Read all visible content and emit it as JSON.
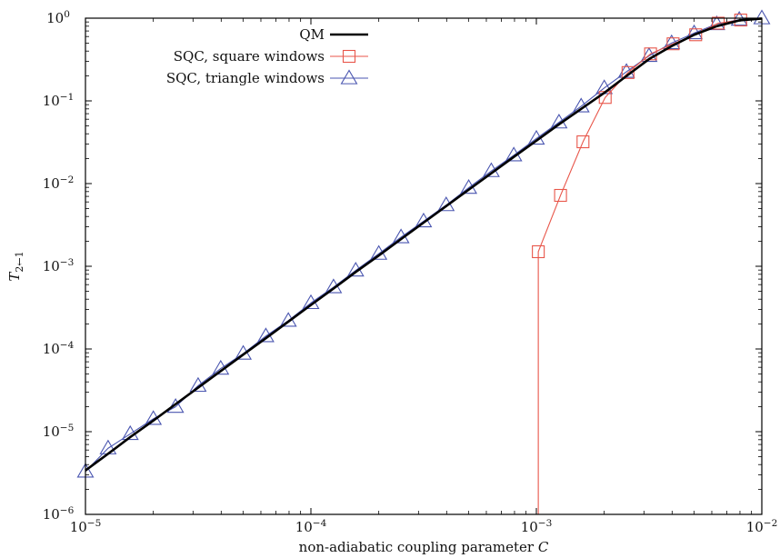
{
  "chart_data": {
    "type": "line",
    "title": "",
    "xlabel": "non-adiabatic coupling parameter C",
    "ylabel": "T2←1",
    "xscale": "log",
    "yscale": "log",
    "xlim": [
      1e-05,
      0.01
    ],
    "ylim": [
      1e-06,
      1
    ],
    "grid": false,
    "legend_position": "top-center",
    "x_tick_labels": [
      {
        "value": 1e-05,
        "base": "10",
        "exp": "−5"
      },
      {
        "value": 0.0001,
        "base": "10",
        "exp": "−4"
      },
      {
        "value": 0.001,
        "base": "10",
        "exp": "−3"
      },
      {
        "value": 0.01,
        "base": "10",
        "exp": "−2"
      }
    ],
    "y_tick_labels": [
      {
        "value": 1e-06,
        "base": "10",
        "exp": "−6"
      },
      {
        "value": 1e-05,
        "base": "10",
        "exp": "−5"
      },
      {
        "value": 0.0001,
        "base": "10",
        "exp": "−4"
      },
      {
        "value": 0.001,
        "base": "10",
        "exp": "−3"
      },
      {
        "value": 0.01,
        "base": "10",
        "exp": "−2"
      },
      {
        "value": 0.1,
        "base": "10",
        "exp": "−1"
      },
      {
        "value": 1,
        "base": "10",
        "exp": "0"
      }
    ],
    "series": [
      {
        "name": "QM",
        "color": "#000000",
        "marker": "none",
        "x": [
          1e-05,
          1.26e-05,
          1.58e-05,
          2e-05,
          2.51e-05,
          3.16e-05,
          3.98e-05,
          5.01e-05,
          6.31e-05,
          7.94e-05,
          0.0001,
          0.000126,
          0.000158,
          0.0002,
          0.000251,
          0.000316,
          0.000398,
          0.000501,
          0.000631,
          0.000794,
          0.001,
          0.00126,
          0.00158,
          0.002,
          0.00251,
          0.00316,
          0.00398,
          0.00501,
          0.00631,
          0.00794,
          0.01
        ],
        "y": [
          3.4e-06,
          5.4e-06,
          8.6e-06,
          1.36e-05,
          2.15e-05,
          3.41e-05,
          5.4e-05,
          8.55e-05,
          0.000135,
          0.000214,
          0.00034,
          0.000538,
          0.000852,
          0.00135,
          0.00213,
          0.00337,
          0.00533,
          0.00843,
          0.0133,
          0.021,
          0.033,
          0.052,
          0.08,
          0.125,
          0.2,
          0.32,
          0.46,
          0.63,
          0.8,
          0.94,
          0.99
        ]
      },
      {
        "name": "SQC, square windows",
        "color": "#e8564a",
        "marker": "square",
        "x": [
          0.00102,
          0.00102,
          0.00128,
          0.00161,
          0.00202,
          0.00255,
          0.00321,
          0.00404,
          0.00509,
          0.00641,
          0.00806
        ],
        "y": [
          1e-06,
          0.0015,
          0.0072,
          0.032,
          0.11,
          0.22,
          0.37,
          0.49,
          0.63,
          0.87,
          0.95
        ],
        "markers": [
          false,
          true,
          true,
          true,
          true,
          true,
          true,
          true,
          true,
          true,
          true
        ]
      },
      {
        "name": "SQC, triangle windows",
        "color": "#4a56b0",
        "marker": "triangle",
        "x": [
          1e-05,
          1.26e-05,
          1.58e-05,
          2e-05,
          2.51e-05,
          3.16e-05,
          3.98e-05,
          5.01e-05,
          6.31e-05,
          7.94e-05,
          0.0001,
          0.000126,
          0.000158,
          0.0002,
          0.000251,
          0.000316,
          0.000398,
          0.000501,
          0.000631,
          0.000794,
          0.001,
          0.00126,
          0.00158,
          0.002,
          0.00251,
          0.00316,
          0.00398,
          0.00501,
          0.00631,
          0.00794,
          0.01
        ],
        "y": [
          3.3e-06,
          6.3e-06,
          9.4e-06,
          1.43e-05,
          2e-05,
          3.6e-05,
          5.8e-05,
          8.8e-05,
          0.000143,
          0.00022,
          0.00036,
          0.00056,
          0.00089,
          0.00142,
          0.00225,
          0.0035,
          0.0055,
          0.0089,
          0.0142,
          0.022,
          0.035,
          0.055,
          0.086,
          0.143,
          0.225,
          0.35,
          0.5,
          0.66,
          0.85,
          0.96,
          1.0
        ]
      }
    ]
  }
}
